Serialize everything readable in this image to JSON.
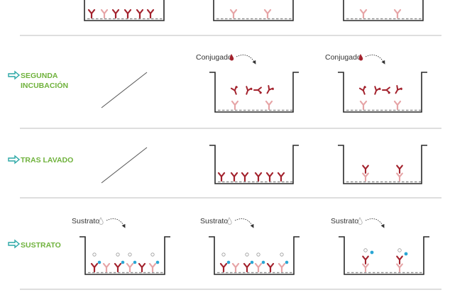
{
  "colors": {
    "step_label": "#6fb23c",
    "arrow": "#2aa7a6",
    "divider": "#bdbdbd",
    "antibody_dark": "#a3222d",
    "antibody_light": "#e6a4a6",
    "conjugate_drop": "#a3222d",
    "substrate_drop": "#b8b8b8",
    "product_blue": "#29a6d4",
    "well_line": "#2a2a2a",
    "plate_surface": "#8c8c8c"
  },
  "rows": [
    {
      "id": "prev-step",
      "label_lines": [],
      "reagent": ""
    },
    {
      "id": "segunda-incubacion",
      "label_lines": [
        "SEGUNDA",
        "INCUBACIÓN"
      ],
      "reagent": "Conjugado"
    },
    {
      "id": "tras-lavado",
      "label_lines": [
        "TRAS LAVADO"
      ],
      "reagent": ""
    },
    {
      "id": "sustrato",
      "label_lines": [
        "SUSTRATO"
      ],
      "reagent": "Sustrato"
    }
  ],
  "labels": {
    "conjugado_1": "Conjugado",
    "conjugado_2": "Conjugado",
    "sustrato_1": "Sustrato",
    "sustrato_2": "Sustrato",
    "sustrato_3": "Sustrato",
    "segunda_line1": "SEGUNDA",
    "segunda_line2": "INCUBACIÓN",
    "tras_lavado": "TRAS LAVADO",
    "sustrato_step": "SUSTRATO"
  }
}
